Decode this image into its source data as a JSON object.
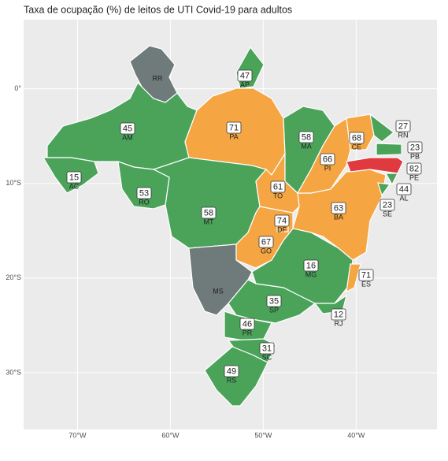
{
  "chart_data": {
    "type": "map",
    "title": "Taxa de ocupação (%) de leitos de UTI Covid-19 para adultos",
    "xlim": [
      -75.8,
      -31.3
    ],
    "ylim": [
      -36,
      7.3
    ],
    "xticks": [
      {
        "value": -70,
        "label": "70°W"
      },
      {
        "value": -60,
        "label": "60°W"
      },
      {
        "value": -50,
        "label": "50°W"
      },
      {
        "value": -40,
        "label": "40°W"
      }
    ],
    "yticks": [
      {
        "value": 0,
        "label": "0°"
      },
      {
        "value": -10,
        "label": "10°S"
      },
      {
        "value": -20,
        "label": "20°S"
      },
      {
        "value": -30,
        "label": "30°S"
      }
    ],
    "grid": true,
    "states": [
      {
        "abbr": "AM",
        "value": 45,
        "color": "#4ba35a"
      },
      {
        "abbr": "PA",
        "value": 71,
        "color": "#f5a541"
      },
      {
        "abbr": "MT",
        "value": 58,
        "color": "#4ba35a"
      },
      {
        "abbr": "BA",
        "value": 63,
        "color": "#f5a541"
      },
      {
        "abbr": "MG",
        "value": 16,
        "color": "#4ba35a"
      },
      {
        "abbr": "MS",
        "value": null,
        "color": "#6f7a7b"
      },
      {
        "abbr": "SP",
        "value": 35,
        "color": "#4ba35a"
      },
      {
        "abbr": "GO",
        "value": 67,
        "color": "#f5a541"
      },
      {
        "abbr": "TO",
        "value": 61,
        "color": "#f5a541"
      },
      {
        "abbr": "MA",
        "value": 58,
        "color": "#4ba35a"
      },
      {
        "abbr": "PI",
        "value": 66,
        "color": "#f5a541"
      },
      {
        "abbr": "CE",
        "value": 68,
        "color": "#f5a541"
      },
      {
        "abbr": "RN",
        "value": 27,
        "color": "#4ba35a"
      },
      {
        "abbr": "PB",
        "value": 23,
        "color": "#4ba35a"
      },
      {
        "abbr": "PE",
        "value": 82,
        "color": "#e0393f"
      },
      {
        "abbr": "AL",
        "value": 44,
        "color": "#4ba35a"
      },
      {
        "abbr": "SE",
        "value": 23,
        "color": "#4ba35a"
      },
      {
        "abbr": "RR",
        "value": null,
        "color": "#6f7a7b"
      },
      {
        "abbr": "AP",
        "value": 47,
        "color": "#4ba35a"
      },
      {
        "abbr": "AC",
        "value": 15,
        "color": "#4ba35a"
      },
      {
        "abbr": "RO",
        "value": 53,
        "color": "#4ba35a"
      },
      {
        "abbr": "DF",
        "value": 74,
        "color": "#f5a541"
      },
      {
        "abbr": "ES",
        "value": 71,
        "color": "#f5a541"
      },
      {
        "abbr": "RJ",
        "value": 12,
        "color": "#4ba35a"
      },
      {
        "abbr": "PR",
        "value": 46,
        "color": "#4ba35a"
      },
      {
        "abbr": "SC",
        "value": 31,
        "color": "#4ba35a"
      },
      {
        "abbr": "RS",
        "value": 49,
        "color": "#4ba35a"
      }
    ]
  }
}
